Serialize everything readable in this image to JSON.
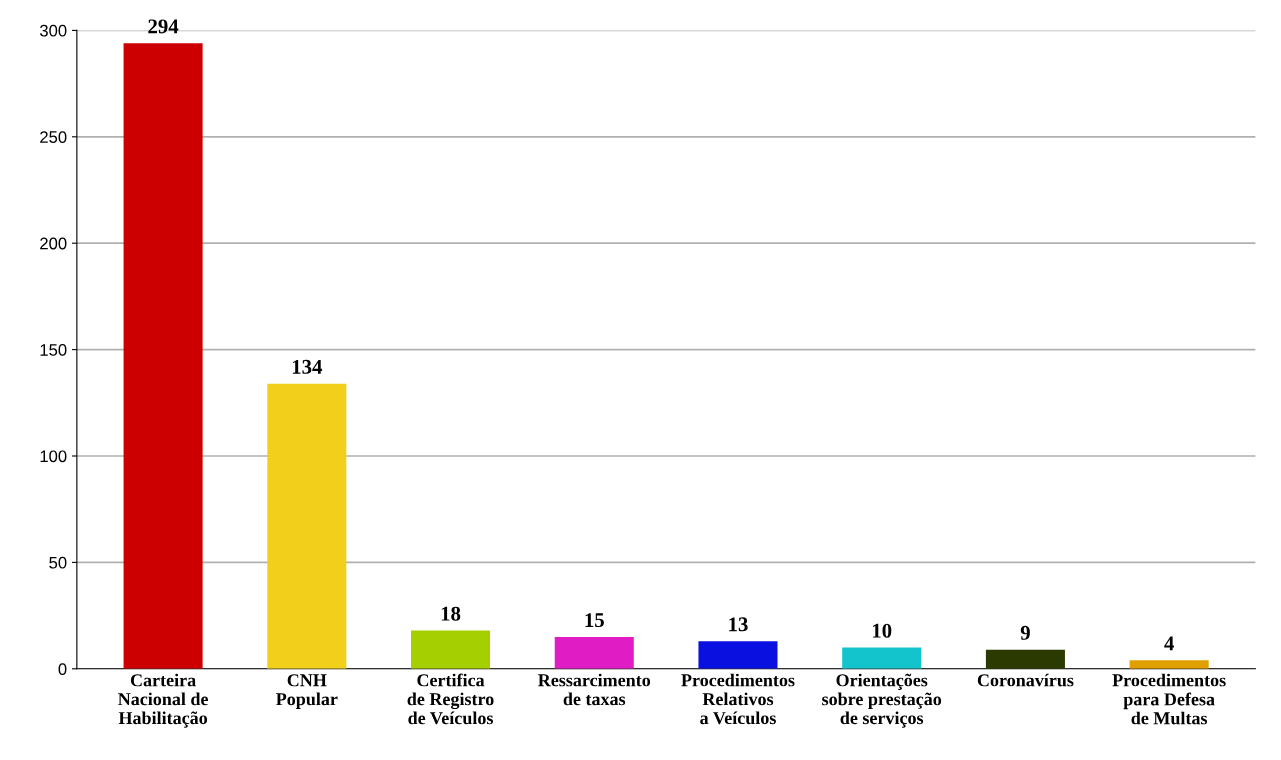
{
  "chart_data": {
    "type": "bar",
    "categories": [
      "Carteira\nNacional de\nHabilitação",
      "CNH\nPopular",
      "Certifica\nde Registro\nde Veículos",
      "Ressarcimento\nde taxas",
      "Procedimentos\nRelativos\na Veículos",
      "Orientações\nsobre prestação\nde serviços",
      "Coronavírus",
      "Procedimentos\npara Defesa\nde Multas"
    ],
    "values": [
      294,
      134,
      18,
      15,
      13,
      10,
      9,
      4
    ],
    "colors": [
      "#cc0000",
      "#f2cf1a",
      "#a6cf00",
      "#e01cc4",
      "#0a10e0",
      "#14c4cc",
      "#2b3a00",
      "#e0a000"
    ],
    "ylim": [
      0,
      300
    ],
    "yticks": [
      0,
      50,
      100,
      150,
      200,
      250,
      300
    ],
    "grid": "y",
    "data_labels": true
  }
}
